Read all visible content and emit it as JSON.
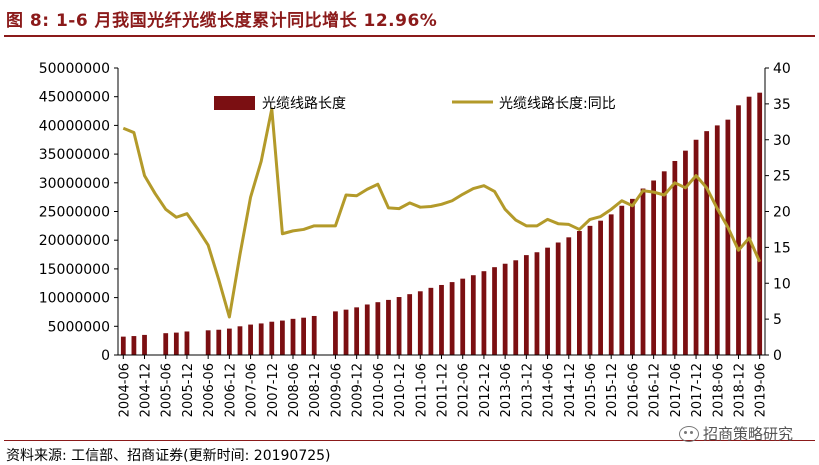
{
  "header": {
    "title": "图 8:  1-6 月我国光纤光缆长度累计同比增长 12.96%"
  },
  "footer": {
    "source": "资料来源:  工信部、招商证券(更新时间:  20190725)",
    "watermark": "招商策略研究"
  },
  "colors": {
    "bar": "#7b0f12",
    "line": "#b39a2a",
    "axis": "#000000",
    "accent": "#8b1a1a"
  },
  "chart_data": {
    "type": "bar+line",
    "categories": [
      "2004-06",
      "2004-09",
      "2004-12",
      "2005-03",
      "2005-06",
      "2005-09",
      "2005-12",
      "2006-03",
      "2006-06",
      "2006-09",
      "2006-12",
      "2007-03",
      "2007-06",
      "2007-09",
      "2007-12",
      "2008-03",
      "2008-06",
      "2008-09",
      "2008-12",
      "2009-03",
      "2009-06",
      "2009-09",
      "2009-12",
      "2010-03",
      "2010-06",
      "2010-09",
      "2010-12",
      "2011-03",
      "2011-06",
      "2011-09",
      "2011-12",
      "2012-03",
      "2012-06",
      "2012-09",
      "2012-12",
      "2013-03",
      "2013-06",
      "2013-09",
      "2013-12",
      "2014-03",
      "2014-06",
      "2014-09",
      "2014-12",
      "2015-03",
      "2015-06",
      "2015-09",
      "2015-12",
      "2016-03",
      "2016-06",
      "2016-09",
      "2016-12",
      "2017-03",
      "2017-06",
      "2017-09",
      "2017-12",
      "2018-03",
      "2018-06",
      "2018-09",
      "2018-12",
      "2019-03",
      "2019-06"
    ],
    "tick_labels": [
      "2004-06",
      "2004-12",
      "2005-06",
      "2005-12",
      "2006-06",
      "2006-12",
      "2007-06",
      "2007-12",
      "2008-06",
      "2008-12",
      "2009-06",
      "2009-12",
      "2010-06",
      "2010-12",
      "2011-06",
      "2011-12",
      "2012-06",
      "2012-12",
      "2013-06",
      "2013-12",
      "2014-06",
      "2014-12",
      "2015-06",
      "2015-12",
      "2016-06",
      "2016-12",
      "2017-06",
      "2017-12",
      "2018-06",
      "2018-12",
      "2019-06"
    ],
    "series": [
      {
        "name": "光缆线路长度",
        "type": "bar",
        "axis": "left",
        "values": [
          3200000,
          3300000,
          3500000,
          null,
          3800000,
          3900000,
          4100000,
          null,
          4300000,
          4400000,
          4600000,
          5000000,
          5300000,
          5500000,
          5800000,
          6000000,
          6300000,
          6500000,
          6800000,
          null,
          7600000,
          7900000,
          8300000,
          8800000,
          9200000,
          9600000,
          10100000,
          10600000,
          11100000,
          11700000,
          12200000,
          12700000,
          13300000,
          13900000,
          14600000,
          15300000,
          15900000,
          16500000,
          17400000,
          17900000,
          18700000,
          19600000,
          20500000,
          21600000,
          22500000,
          23400000,
          24500000,
          26000000,
          27200000,
          29000000,
          30400000,
          32000000,
          33800000,
          35600000,
          37500000,
          39000000,
          40000000,
          41000000,
          43500000,
          45000000,
          45700000
        ]
      },
      {
        "name": "光缆线路长度:同比",
        "type": "line",
        "axis": "right",
        "values": [
          31.6,
          31.0,
          25.0,
          22.5,
          20.3,
          19.2,
          19.7,
          17.6,
          15.3,
          10.5,
          5.3,
          14.0,
          22.0,
          27.0,
          34.3,
          16.9,
          17.3,
          17.5,
          18.0,
          18.0,
          18.0,
          22.3,
          22.2,
          23.1,
          23.8,
          20.5,
          20.4,
          21.2,
          20.6,
          20.7,
          21.0,
          21.5,
          22.4,
          23.2,
          23.6,
          22.8,
          20.3,
          18.8,
          18.0,
          18.0,
          18.9,
          18.3,
          18.2,
          17.5,
          18.9,
          19.3,
          20.3,
          21.5,
          20.8,
          22.9,
          22.7,
          22.3,
          24.0,
          23.3,
          25.0,
          23.3,
          20.4,
          17.8,
          14.6,
          16.3,
          13.0
        ]
      }
    ],
    "y_left": {
      "min": 0,
      "max": 50000000,
      "ticks": [
        "0",
        "5000000",
        "10000000",
        "15000000",
        "20000000",
        "25000000",
        "30000000",
        "35000000",
        "40000000",
        "45000000",
        "50000000"
      ]
    },
    "y_right": {
      "min": 0,
      "max": 40,
      "ticks": [
        "0",
        "5",
        "10",
        "15",
        "20",
        "25",
        "30",
        "35",
        "40"
      ]
    },
    "legend_placement": "top",
    "grid": false
  }
}
